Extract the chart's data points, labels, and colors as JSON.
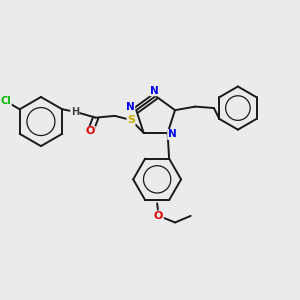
{
  "background_color": "#ebebeb",
  "bond_color": "#1a1a1a",
  "atom_colors": {
    "Cl": "#00bb00",
    "N": "#0000ee",
    "O": "#dd0000",
    "S": "#ccaa00",
    "H": "#444444",
    "C": "#1a1a1a"
  },
  "figsize": [
    3.0,
    3.0
  ],
  "dpi": 100
}
